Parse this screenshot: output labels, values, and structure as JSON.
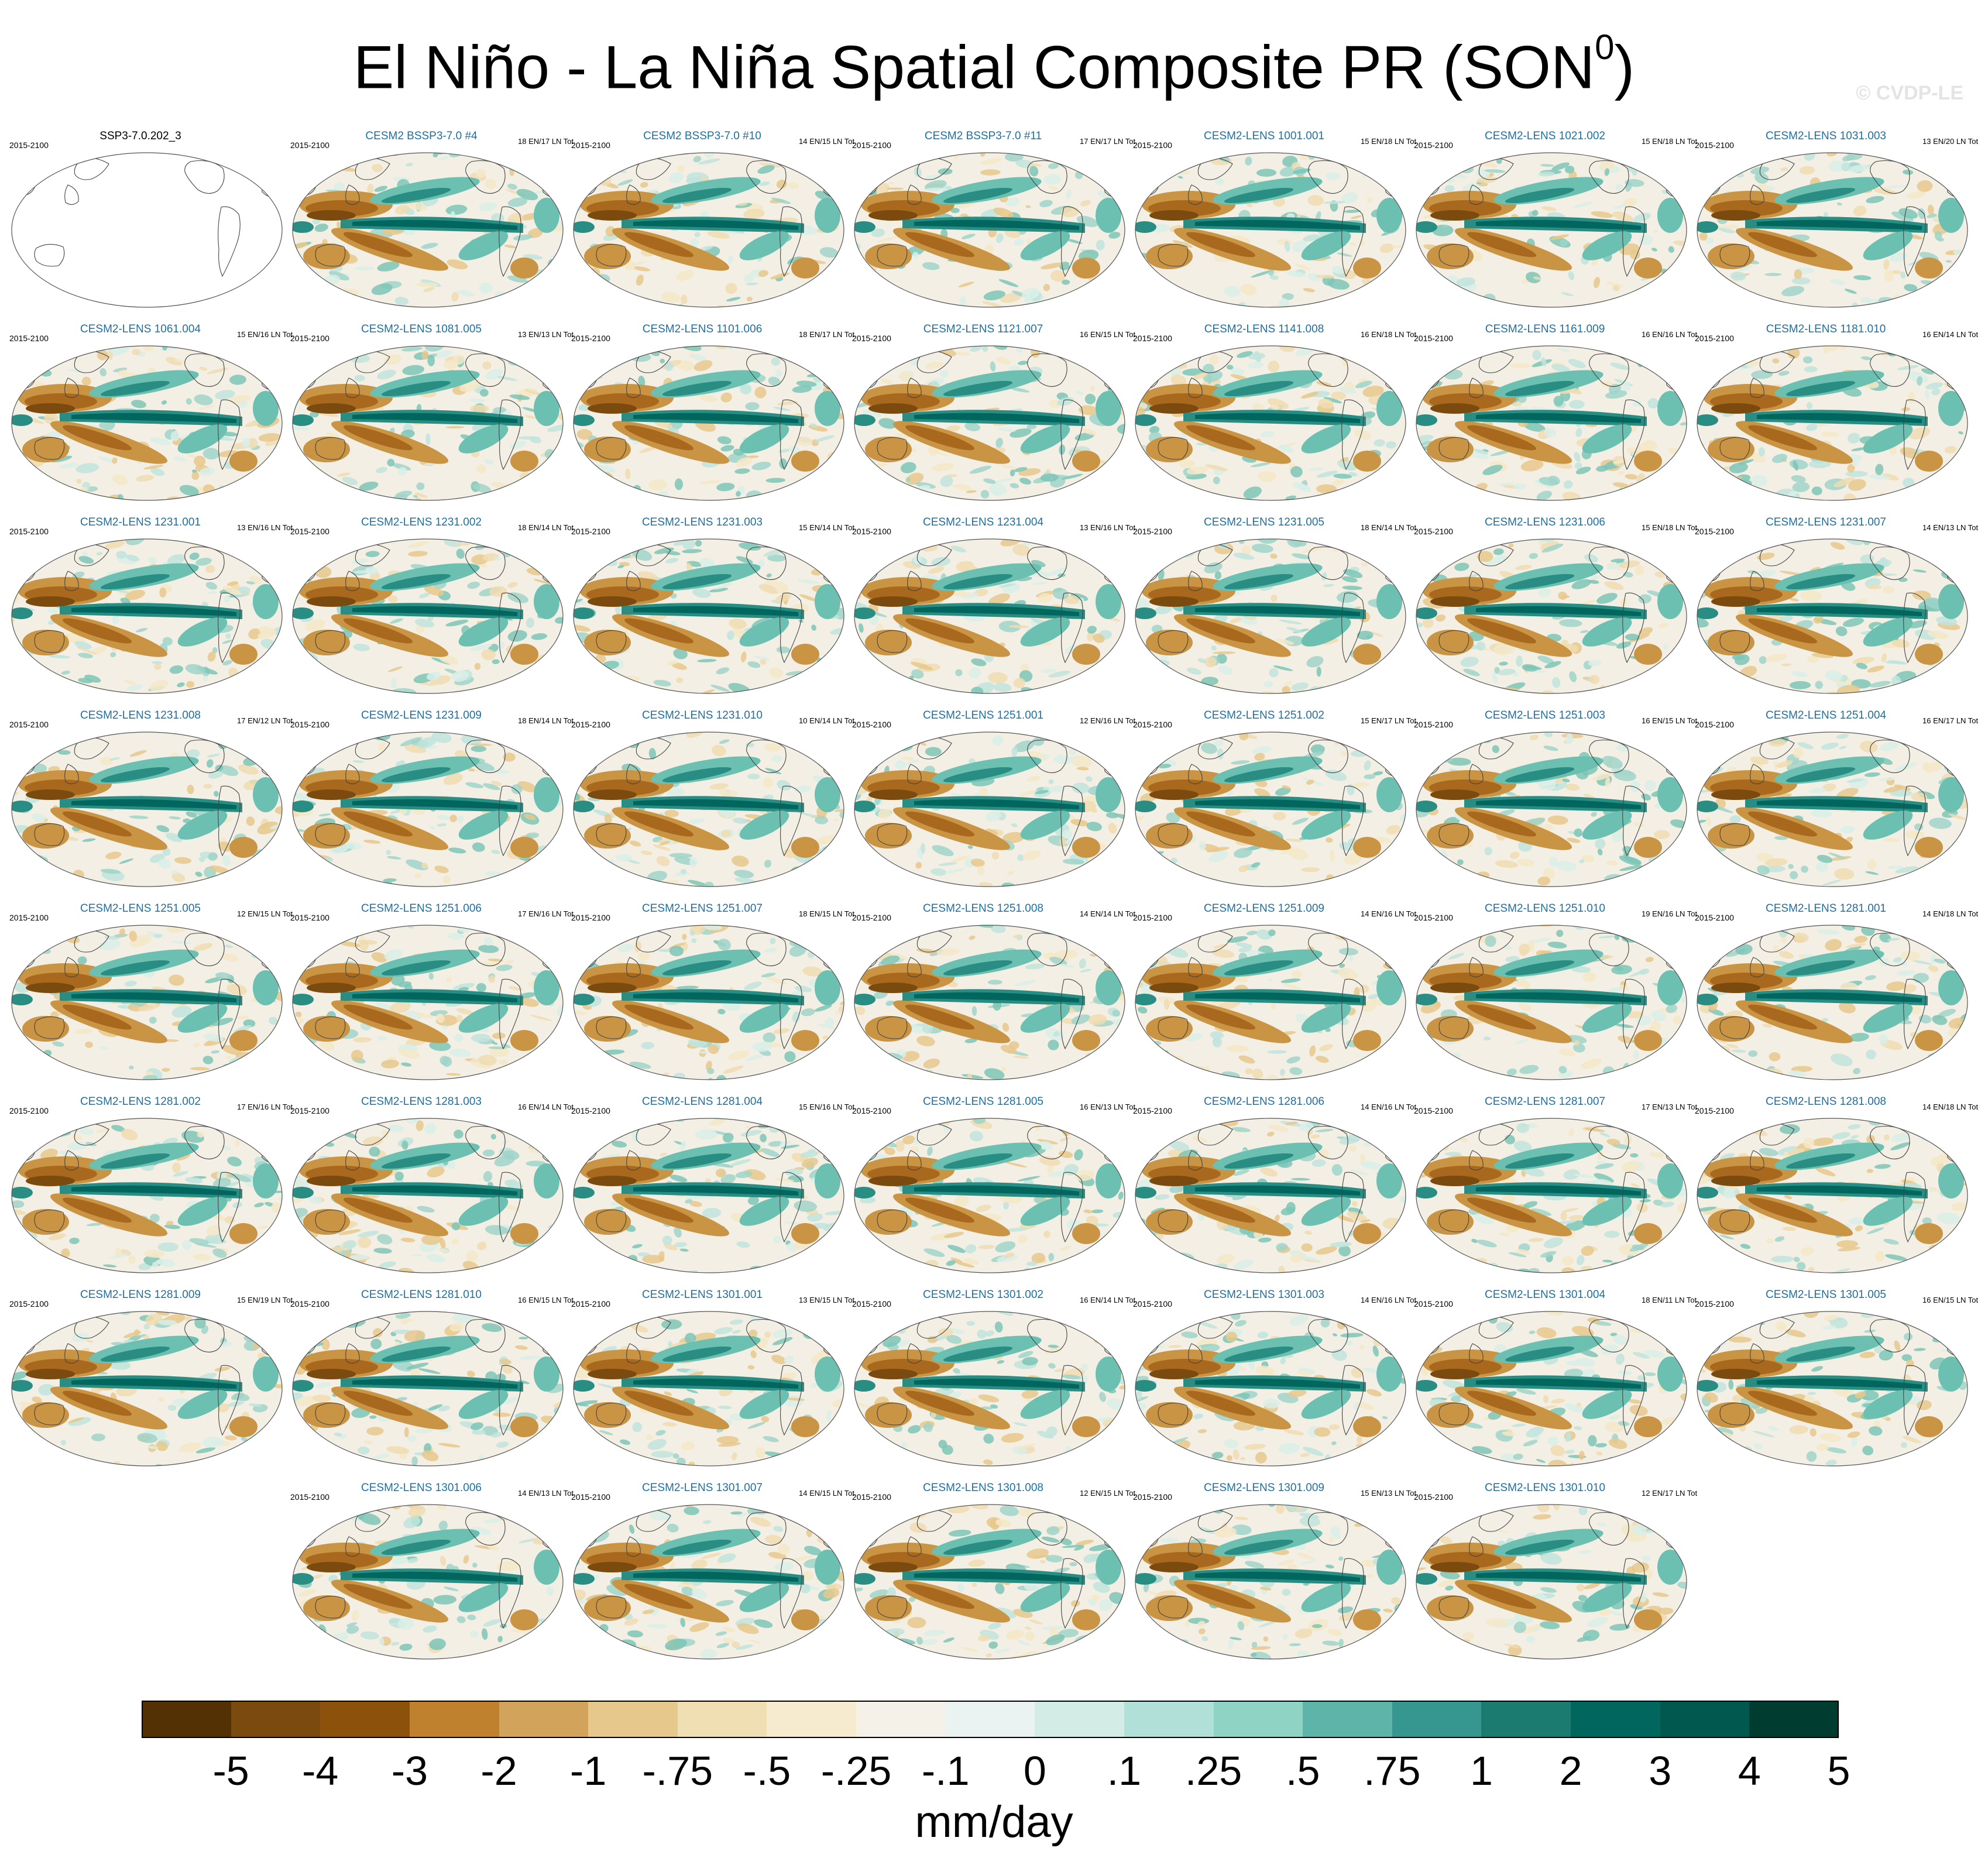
{
  "title": "El Niño - La Niña Spatial Composite PR (SON",
  "title_superscript": "0",
  "title_close": ")",
  "copyright": "© CVDP-LE",
  "panels": [
    {
      "title": "SSP3-7.0.202_3",
      "period": "2015-2100",
      "counts": "",
      "observed": true
    },
    {
      "title": "CESM2 BSSP3-7.0 #4",
      "period": "2015-2100",
      "counts": "18 EN/17 LN Tot"
    },
    {
      "title": "CESM2 BSSP3-7.0 #10",
      "period": "2015-2100",
      "counts": "14 EN/15 LN Tot"
    },
    {
      "title": "CESM2 BSSP3-7.0 #11",
      "period": "2015-2100",
      "counts": "17 EN/17 LN Tot"
    },
    {
      "title": "CESM2-LENS 1001.001",
      "period": "2015-2100",
      "counts": "15 EN/18 LN Tot"
    },
    {
      "title": "CESM2-LENS 1021.002",
      "period": "2015-2100",
      "counts": "15 EN/18 LN Tot"
    },
    {
      "title": "CESM2-LENS 1031.003",
      "period": "2015-2100",
      "counts": "13 EN/20 LN Tot"
    },
    {
      "title": "CESM2-LENS 1061.004",
      "period": "2015-2100",
      "counts": "15 EN/16 LN Tot"
    },
    {
      "title": "CESM2-LENS 1081.005",
      "period": "2015-2100",
      "counts": "13 EN/13 LN Tot"
    },
    {
      "title": "CESM2-LENS 1101.006",
      "period": "2015-2100",
      "counts": "18 EN/17 LN Tot"
    },
    {
      "title": "CESM2-LENS 1121.007",
      "period": "2015-2100",
      "counts": "16 EN/15 LN Tot"
    },
    {
      "title": "CESM2-LENS 1141.008",
      "period": "2015-2100",
      "counts": "16 EN/18 LN Tot"
    },
    {
      "title": "CESM2-LENS 1161.009",
      "period": "2015-2100",
      "counts": "16 EN/16 LN Tot"
    },
    {
      "title": "CESM2-LENS 1181.010",
      "period": "2015-2100",
      "counts": "16 EN/14 LN Tot"
    },
    {
      "title": "CESM2-LENS 1231.001",
      "period": "2015-2100",
      "counts": "13 EN/16 LN Tot"
    },
    {
      "title": "CESM2-LENS 1231.002",
      "period": "2015-2100",
      "counts": "18 EN/14 LN Tot"
    },
    {
      "title": "CESM2-LENS 1231.003",
      "period": "2015-2100",
      "counts": "15 EN/14 LN Tot"
    },
    {
      "title": "CESM2-LENS 1231.004",
      "period": "2015-2100",
      "counts": "13 EN/16 LN Tot"
    },
    {
      "title": "CESM2-LENS 1231.005",
      "period": "2015-2100",
      "counts": "18 EN/14 LN Tot"
    },
    {
      "title": "CESM2-LENS 1231.006",
      "period": "2015-2100",
      "counts": "15 EN/18 LN Tot"
    },
    {
      "title": "CESM2-LENS 1231.007",
      "period": "2015-2100",
      "counts": "14 EN/13 LN Tot"
    },
    {
      "title": "CESM2-LENS 1231.008",
      "period": "2015-2100",
      "counts": "17 EN/12 LN Tot"
    },
    {
      "title": "CESM2-LENS 1231.009",
      "period": "2015-2100",
      "counts": "18 EN/14 LN Tot"
    },
    {
      "title": "CESM2-LENS 1231.010",
      "period": "2015-2100",
      "counts": "10 EN/14 LN Tot"
    },
    {
      "title": "CESM2-LENS 1251.001",
      "period": "2015-2100",
      "counts": "12 EN/16 LN Tot"
    },
    {
      "title": "CESM2-LENS 1251.002",
      "period": "2015-2100",
      "counts": "15 EN/17 LN Tot"
    },
    {
      "title": "CESM2-LENS 1251.003",
      "period": "2015-2100",
      "counts": "16 EN/15 LN Tot"
    },
    {
      "title": "CESM2-LENS 1251.004",
      "period": "2015-2100",
      "counts": "16 EN/17 LN Tot"
    },
    {
      "title": "CESM2-LENS 1251.005",
      "period": "2015-2100",
      "counts": "12 EN/15 LN Tot"
    },
    {
      "title": "CESM2-LENS 1251.006",
      "period": "2015-2100",
      "counts": "17 EN/16 LN Tot"
    },
    {
      "title": "CESM2-LENS 1251.007",
      "period": "2015-2100",
      "counts": "18 EN/15 LN Tot"
    },
    {
      "title": "CESM2-LENS 1251.008",
      "period": "2015-2100",
      "counts": "14 EN/14 LN Tot"
    },
    {
      "title": "CESM2-LENS 1251.009",
      "period": "2015-2100",
      "counts": "14 EN/16 LN Tot"
    },
    {
      "title": "CESM2-LENS 1251.010",
      "period": "2015-2100",
      "counts": "19 EN/16 LN Tot"
    },
    {
      "title": "CESM2-LENS 1281.001",
      "period": "2015-2100",
      "counts": "14 EN/18 LN Tot"
    },
    {
      "title": "CESM2-LENS 1281.002",
      "period": "2015-2100",
      "counts": "17 EN/16 LN Tot"
    },
    {
      "title": "CESM2-LENS 1281.003",
      "period": "2015-2100",
      "counts": "16 EN/14 LN Tot"
    },
    {
      "title": "CESM2-LENS 1281.004",
      "period": "2015-2100",
      "counts": "15 EN/16 LN Tot"
    },
    {
      "title": "CESM2-LENS 1281.005",
      "period": "2015-2100",
      "counts": "16 EN/13 LN Tot"
    },
    {
      "title": "CESM2-LENS 1281.006",
      "period": "2015-2100",
      "counts": "14 EN/16 LN Tot"
    },
    {
      "title": "CESM2-LENS 1281.007",
      "period": "2015-2100",
      "counts": "17 EN/13 LN Tot"
    },
    {
      "title": "CESM2-LENS 1281.008",
      "period": "2015-2100",
      "counts": "14 EN/18 LN Tot"
    },
    {
      "title": "CESM2-LENS 1281.009",
      "period": "2015-2100",
      "counts": "15 EN/19 LN Tot"
    },
    {
      "title": "CESM2-LENS 1281.010",
      "period": "2015-2100",
      "counts": "16 EN/15 LN Tot"
    },
    {
      "title": "CESM2-LENS 1301.001",
      "period": "2015-2100",
      "counts": "13 EN/15 LN Tot"
    },
    {
      "title": "CESM2-LENS 1301.002",
      "period": "2015-2100",
      "counts": "16 EN/14 LN Tot"
    },
    {
      "title": "CESM2-LENS 1301.003",
      "period": "2015-2100",
      "counts": "14 EN/16 LN Tot"
    },
    {
      "title": "CESM2-LENS 1301.004",
      "period": "2015-2100",
      "counts": "18 EN/11 LN Tot"
    },
    {
      "title": "CESM2-LENS 1301.005",
      "period": "2015-2100",
      "counts": "16 EN/15 LN Tot"
    },
    {
      "title": "CESM2-LENS 1301.006",
      "period": "2015-2100",
      "counts": "14 EN/13 LN Tot"
    },
    {
      "title": "CESM2-LENS 1301.007",
      "period": "2015-2100",
      "counts": "14 EN/15 LN Tot"
    },
    {
      "title": "CESM2-LENS 1301.008",
      "period": "2015-2100",
      "counts": "12 EN/15 LN Tot"
    },
    {
      "title": "CESM2-LENS 1301.009",
      "period": "2015-2100",
      "counts": "15 EN/13 LN Tot"
    },
    {
      "title": "CESM2-LENS 1301.010",
      "period": "2015-2100",
      "counts": "12 EN/17 LN Tot"
    }
  ],
  "colorbar": {
    "labels": [
      "-5",
      "-4",
      "-3",
      "-2",
      "-1",
      "-.75",
      "-.5",
      "-.25",
      "-.1",
      "0",
      ".1",
      ".25",
      ".5",
      ".75",
      "1",
      "2",
      "3",
      "4",
      "5"
    ],
    "colors": [
      "#543005",
      "#7a4a0e",
      "#8c510a",
      "#bf812d",
      "#d2a35a",
      "#e6c88c",
      "#f1dfb4",
      "#f6ebcf",
      "#f5f1e9",
      "#eaf3f1",
      "#d4ece6",
      "#b1e0d8",
      "#8fd3c4",
      "#5eb4a8",
      "#35978f",
      "#1b7b70",
      "#01665e",
      "#00584f",
      "#003c30"
    ],
    "unit": "mm/day"
  }
}
